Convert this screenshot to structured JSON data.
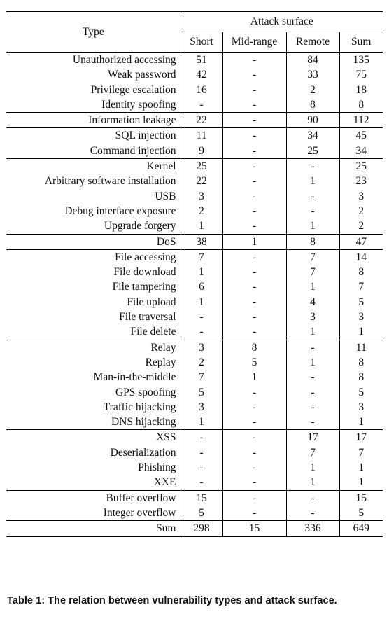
{
  "header": {
    "type_label": "Type",
    "attack_surface_label": "Attack surface",
    "columns": [
      "Short",
      "Mid-range",
      "Remote",
      "Sum"
    ]
  },
  "groups": [
    {
      "rows": [
        {
          "type": "Unauthorized accessing",
          "short": "51",
          "mid": "-",
          "remote": "84",
          "sum": "135"
        },
        {
          "type": "Weak password",
          "short": "42",
          "mid": "-",
          "remote": "33",
          "sum": "75"
        },
        {
          "type": "Privilege escalation",
          "short": "16",
          "mid": "-",
          "remote": "2",
          "sum": "18"
        },
        {
          "type": "Identity spoofing",
          "short": "-",
          "mid": "-",
          "remote": "8",
          "sum": "8"
        }
      ]
    },
    {
      "rows": [
        {
          "type": "Information leakage",
          "short": "22",
          "mid": "-",
          "remote": "90",
          "sum": "112"
        }
      ]
    },
    {
      "rows": [
        {
          "type": "SQL injection",
          "short": "11",
          "mid": "-",
          "remote": "34",
          "sum": "45"
        },
        {
          "type": "Command injection",
          "short": "9",
          "mid": "-",
          "remote": "25",
          "sum": "34"
        }
      ]
    },
    {
      "rows": [
        {
          "type": "Kernel",
          "short": "25",
          "mid": "-",
          "remote": "-",
          "sum": "25"
        },
        {
          "type": "Arbitrary software installation",
          "short": "22",
          "mid": "-",
          "remote": "1",
          "sum": "23"
        },
        {
          "type": "USB",
          "short": "3",
          "mid": "-",
          "remote": "-",
          "sum": "3"
        },
        {
          "type": "Debug interface exposure",
          "short": "2",
          "mid": "-",
          "remote": "-",
          "sum": "2"
        },
        {
          "type": "Upgrade forgery",
          "short": "1",
          "mid": "-",
          "remote": "1",
          "sum": "2"
        }
      ]
    },
    {
      "rows": [
        {
          "type": "DoS",
          "short": "38",
          "mid": "1",
          "remote": "8",
          "sum": "47"
        }
      ]
    },
    {
      "rows": [
        {
          "type": "File accessing",
          "short": "7",
          "mid": "-",
          "remote": "7",
          "sum": "14"
        },
        {
          "type": "File download",
          "short": "1",
          "mid": "-",
          "remote": "7",
          "sum": "8"
        },
        {
          "type": "File tampering",
          "short": "6",
          "mid": "-",
          "remote": "1",
          "sum": "7"
        },
        {
          "type": "File upload",
          "short": "1",
          "mid": "-",
          "remote": "4",
          "sum": "5"
        },
        {
          "type": "File traversal",
          "short": "-",
          "mid": "-",
          "remote": "3",
          "sum": "3"
        },
        {
          "type": "File delete",
          "short": "-",
          "mid": "-",
          "remote": "1",
          "sum": "1"
        }
      ]
    },
    {
      "rows": [
        {
          "type": "Relay",
          "short": "3",
          "mid": "8",
          "remote": "-",
          "sum": "11"
        },
        {
          "type": "Replay",
          "short": "2",
          "mid": "5",
          "remote": "1",
          "sum": "8"
        },
        {
          "type": "Man-in-the-middle",
          "short": "7",
          "mid": "1",
          "remote": "-",
          "sum": "8"
        },
        {
          "type": "GPS spoofing",
          "short": "5",
          "mid": "-",
          "remote": "-",
          "sum": "5"
        },
        {
          "type": "Traffic hijacking",
          "short": "3",
          "mid": "-",
          "remote": "-",
          "sum": "3"
        },
        {
          "type": "DNS hijacking",
          "short": "1",
          "mid": "-",
          "remote": "-",
          "sum": "1"
        }
      ]
    },
    {
      "rows": [
        {
          "type": "XSS",
          "short": "-",
          "mid": "-",
          "remote": "17",
          "sum": "17"
        },
        {
          "type": "Deserialization",
          "short": "-",
          "mid": "-",
          "remote": "7",
          "sum": "7"
        },
        {
          "type": "Phishing",
          "short": "-",
          "mid": "-",
          "remote": "1",
          "sum": "1"
        },
        {
          "type": "XXE",
          "short": "-",
          "mid": "-",
          "remote": "1",
          "sum": "1"
        }
      ]
    },
    {
      "rows": [
        {
          "type": "Buffer overflow",
          "short": "15",
          "mid": "-",
          "remote": "-",
          "sum": "15"
        },
        {
          "type": "Integer overflow",
          "short": "5",
          "mid": "-",
          "remote": "-",
          "sum": "5"
        }
      ]
    }
  ],
  "total": {
    "type": "Sum",
    "short": "298",
    "mid": "15",
    "remote": "336",
    "sum": "649"
  },
  "caption": "Table 1: The relation between vulnerability types and attack surface."
}
